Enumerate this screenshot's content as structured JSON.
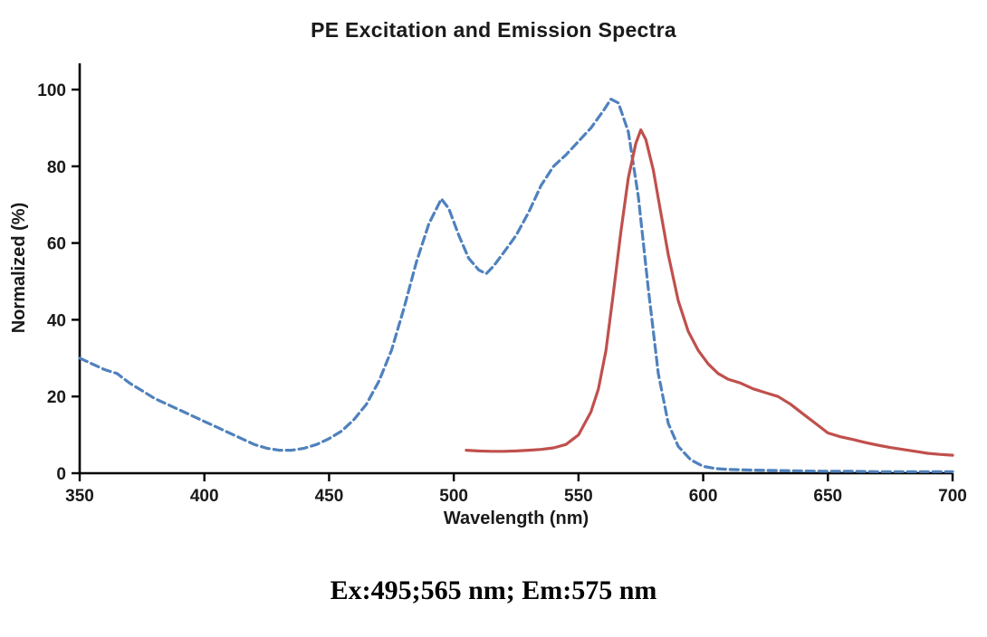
{
  "chart_data": {
    "type": "line",
    "title": "PE Excitation and Emission Spectra",
    "xlabel": "Wavelength (nm)",
    "ylabel": "Normalized (%)",
    "annotation": "Ex:495;565 nm; Em:575 nm",
    "xlim": [
      350,
      700
    ],
    "ylim": [
      0,
      100
    ],
    "x_ticks": [
      350,
      400,
      450,
      500,
      550,
      600,
      650,
      700
    ],
    "y_ticks": [
      0,
      20,
      40,
      60,
      80,
      100
    ],
    "grid": false,
    "legend": "none",
    "axis_color": "#000000",
    "series": [
      {
        "name": "Excitation",
        "style": "dashed",
        "color": "#4F81BD",
        "points": [
          [
            350,
            30
          ],
          [
            355,
            28.5
          ],
          [
            360,
            27
          ],
          [
            365,
            26
          ],
          [
            370,
            23.5
          ],
          [
            375,
            21.5
          ],
          [
            380,
            19.5
          ],
          [
            385,
            18
          ],
          [
            390,
            16.5
          ],
          [
            395,
            15
          ],
          [
            400,
            13.5
          ],
          [
            405,
            12
          ],
          [
            410,
            10.5
          ],
          [
            415,
            9
          ],
          [
            420,
            7.5
          ],
          [
            425,
            6.5
          ],
          [
            430,
            6
          ],
          [
            435,
            6
          ],
          [
            440,
            6.5
          ],
          [
            445,
            7.5
          ],
          [
            450,
            9
          ],
          [
            455,
            11
          ],
          [
            460,
            14
          ],
          [
            465,
            18
          ],
          [
            470,
            24
          ],
          [
            475,
            32
          ],
          [
            480,
            43
          ],
          [
            485,
            55
          ],
          [
            490,
            65
          ],
          [
            495,
            71.5
          ],
          [
            498,
            69
          ],
          [
            502,
            62
          ],
          [
            506,
            56
          ],
          [
            510,
            53
          ],
          [
            513,
            52
          ],
          [
            516,
            54
          ],
          [
            520,
            57.5
          ],
          [
            525,
            62
          ],
          [
            530,
            68
          ],
          [
            535,
            75
          ],
          [
            540,
            80
          ],
          [
            545,
            83
          ],
          [
            550,
            86.5
          ],
          [
            555,
            90
          ],
          [
            560,
            94.5
          ],
          [
            563,
            97.5
          ],
          [
            566,
            96.5
          ],
          [
            570,
            89
          ],
          [
            574,
            72
          ],
          [
            578,
            48
          ],
          [
            582,
            26
          ],
          [
            586,
            13
          ],
          [
            590,
            7
          ],
          [
            595,
            3.5
          ],
          [
            600,
            1.8
          ],
          [
            605,
            1.2
          ],
          [
            610,
            1
          ],
          [
            620,
            0.8
          ],
          [
            630,
            0.7
          ],
          [
            640,
            0.6
          ],
          [
            650,
            0.5
          ],
          [
            660,
            0.5
          ],
          [
            670,
            0.4
          ],
          [
            680,
            0.4
          ],
          [
            690,
            0.4
          ],
          [
            700,
            0.4
          ]
        ]
      },
      {
        "name": "Emission",
        "style": "solid",
        "color": "#C0504D",
        "points": [
          [
            505,
            6
          ],
          [
            510,
            5.8
          ],
          [
            515,
            5.7
          ],
          [
            520,
            5.7
          ],
          [
            525,
            5.8
          ],
          [
            530,
            6
          ],
          [
            535,
            6.2
          ],
          [
            540,
            6.6
          ],
          [
            545,
            7.5
          ],
          [
            550,
            10
          ],
          [
            555,
            16
          ],
          [
            558,
            22
          ],
          [
            561,
            32
          ],
          [
            564,
            47
          ],
          [
            567,
            63
          ],
          [
            570,
            77
          ],
          [
            573,
            86
          ],
          [
            575,
            89.5
          ],
          [
            577,
            87
          ],
          [
            580,
            79
          ],
          [
            583,
            68
          ],
          [
            586,
            57
          ],
          [
            590,
            45
          ],
          [
            594,
            37
          ],
          [
            598,
            32
          ],
          [
            602,
            28.5
          ],
          [
            606,
            26
          ],
          [
            610,
            24.5
          ],
          [
            615,
            23.5
          ],
          [
            620,
            22
          ],
          [
            625,
            21
          ],
          [
            630,
            20
          ],
          [
            635,
            18
          ],
          [
            640,
            15.5
          ],
          [
            645,
            13
          ],
          [
            650,
            10.5
          ],
          [
            655,
            9.5
          ],
          [
            660,
            8.8
          ],
          [
            665,
            8
          ],
          [
            670,
            7.3
          ],
          [
            675,
            6.7
          ],
          [
            680,
            6.2
          ],
          [
            685,
            5.7
          ],
          [
            690,
            5.2
          ],
          [
            695,
            4.9
          ],
          [
            700,
            4.7
          ]
        ]
      }
    ]
  }
}
